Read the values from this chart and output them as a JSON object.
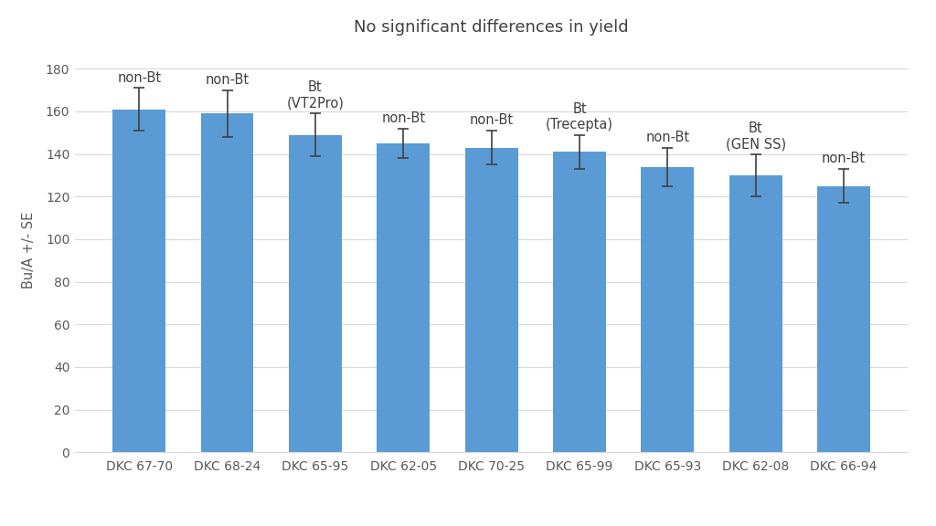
{
  "title": "No significant differences in yield",
  "ylabel": "Bu/A +/- SE",
  "categories": [
    "DKC 67-70",
    "DKC 68-24",
    "DKC 65-95",
    "DKC 62-05",
    "DKC 70-25",
    "DKC 65-99",
    "DKC 65-93",
    "DKC 62-08",
    "DKC 66-94"
  ],
  "values": [
    161,
    159,
    149,
    145,
    143,
    141,
    134,
    130,
    125
  ],
  "errors": [
    10,
    11,
    10,
    7,
    8,
    8,
    9,
    10,
    8
  ],
  "labels": [
    "non-Bt",
    "non-Bt",
    "Bt\n(VT2Pro)",
    "non-Bt",
    "non-Bt",
    "Bt\n(Trecepta)",
    "non-Bt",
    "Bt\n(GEN SS)",
    "non-Bt"
  ],
  "bar_color": "#5B9BD5",
  "ylim": [
    0,
    190
  ],
  "yticks": [
    0,
    20,
    40,
    60,
    80,
    100,
    120,
    140,
    160,
    180
  ],
  "figure_bg": "#ffffff",
  "plot_bg": "#ffffff",
  "grid_color": "#d9d9d9",
  "axis_text_color": "#595959",
  "title_color": "#404040",
  "label_color": "#404040",
  "title_fontsize": 13,
  "label_fontsize": 10.5,
  "tick_fontsize": 10,
  "ylabel_fontsize": 10.5,
  "bar_width": 0.6,
  "error_capsize": 4,
  "error_linewidth": 1.2,
  "error_capthick": 1.2
}
